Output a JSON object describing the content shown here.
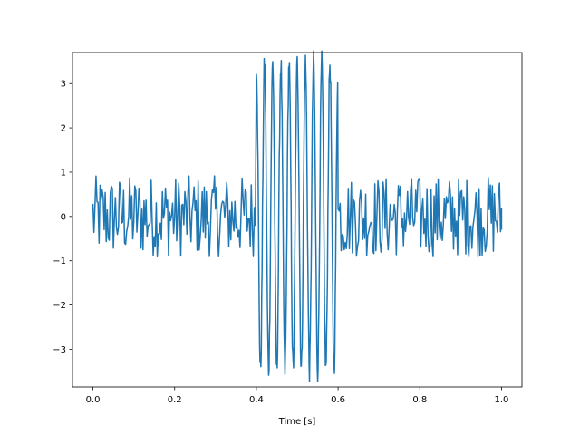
{
  "chart_data": {
    "type": "line",
    "title": "",
    "xlabel": "Time [s]",
    "ylabel": "",
    "xlim": [
      -0.05,
      1.05
    ],
    "ylim": [
      -3.85,
      3.7
    ],
    "xticks": [
      0.0,
      0.2,
      0.4,
      0.6,
      0.8,
      1.0
    ],
    "xtick_labels": [
      "0.0",
      "0.2",
      "0.4",
      "0.6",
      "0.8",
      "1.0"
    ],
    "yticks": [
      -3,
      -2,
      -1,
      0,
      1,
      2,
      3
    ],
    "ytick_labels": [
      "−3",
      "−2",
      "−1",
      "0",
      "1",
      "2",
      "3"
    ],
    "grid": false,
    "series": [
      {
        "color": "#1f77b4",
        "description_points": [
          {
            "x": 0.0,
            "y": 0.1
          },
          {
            "x": 0.4,
            "y": 0.0
          },
          {
            "x": 0.405,
            "y": 3.1
          },
          {
            "x": 0.41,
            "y": -2.7
          },
          {
            "x": 0.425,
            "y": 3.4
          },
          {
            "x": 0.43,
            "y": -3.3
          },
          {
            "x": 0.5,
            "y": 3.4
          },
          {
            "x": 0.51,
            "y": -3.5
          },
          {
            "x": 0.565,
            "y": 3.4
          },
          {
            "x": 0.57,
            "y": -3.5
          },
          {
            "x": 0.6,
            "y": -2.9
          },
          {
            "x": 0.605,
            "y": 0.5
          },
          {
            "x": 1.0,
            "y": -0.3
          }
        ],
        "segments": [
          {
            "x_start": 0.0,
            "x_end": 0.4,
            "kind": "noise",
            "amplitude": 0.92
          },
          {
            "x_start": 0.4,
            "x_end": 0.6,
            "kind": "sine",
            "amplitude": 3.45,
            "frequency_hz": 50,
            "noise_amplitude": 0.3
          },
          {
            "x_start": 0.6,
            "x_end": 1.0,
            "kind": "noise",
            "amplitude": 0.92
          }
        ]
      }
    ]
  }
}
